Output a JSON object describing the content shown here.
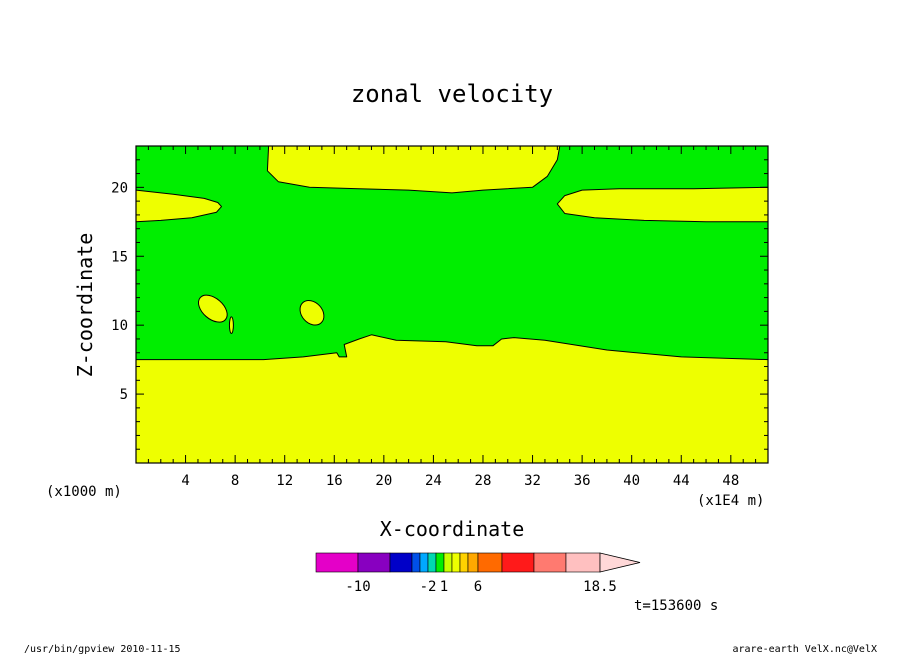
{
  "chart_data": {
    "type": "contour",
    "title": "zonal velocity",
    "xlabel": "X-coordinate",
    "ylabel": "Z-coordinate",
    "x_unit_label": "(x1000 m)",
    "x_unit_label_right": "(x1E4 m)",
    "xlim": [
      0,
      51
    ],
    "ylim": [
      0,
      23
    ],
    "x_ticks": [
      4,
      8,
      12,
      16,
      20,
      24,
      28,
      32,
      36,
      40,
      44,
      48
    ],
    "y_ticks": [
      5,
      10,
      15,
      20
    ],
    "background_color": "#00ee00",
    "fill_color_positive": "#eeff00",
    "regions": [
      {
        "name": "lower-band",
        "boundary": [
          [
            0,
            0
          ],
          [
            0,
            7.5
          ],
          [
            10.3,
            7.5
          ],
          [
            13.5,
            7.7
          ],
          [
            15.3,
            7.9
          ],
          [
            16.2,
            8.0
          ],
          [
            16.4,
            7.7
          ],
          [
            17,
            7.7
          ],
          [
            16.8,
            8.6
          ],
          [
            18,
            9.0
          ],
          [
            19,
            9.3
          ],
          [
            21,
            8.9
          ],
          [
            25,
            8.8
          ],
          [
            27.5,
            8.5
          ],
          [
            28.8,
            8.5
          ],
          [
            29.5,
            9.0
          ],
          [
            30.5,
            9.1
          ],
          [
            33,
            8.9
          ],
          [
            38,
            8.2
          ],
          [
            44,
            7.7
          ],
          [
            51,
            7.5
          ],
          [
            51,
            0
          ]
        ]
      },
      {
        "name": "upper-center-cap",
        "boundary": [
          [
            10.7,
            23
          ],
          [
            10.6,
            21.2
          ],
          [
            11.5,
            20.4
          ],
          [
            14,
            20.0
          ],
          [
            18,
            19.9
          ],
          [
            22,
            19.8
          ],
          [
            25.5,
            19.6
          ],
          [
            28,
            19.8
          ],
          [
            32,
            20.0
          ],
          [
            33.2,
            20.8
          ],
          [
            34,
            22
          ],
          [
            34.2,
            23
          ]
        ]
      },
      {
        "name": "left-lobe",
        "boundary": [
          [
            0,
            19.8
          ],
          [
            3,
            19.5
          ],
          [
            5.5,
            19.2
          ],
          [
            6.6,
            18.9
          ],
          [
            6.9,
            18.6
          ],
          [
            6.5,
            18.2
          ],
          [
            4.5,
            17.8
          ],
          [
            2,
            17.6
          ],
          [
            0,
            17.5
          ]
        ]
      },
      {
        "name": "right-lobe",
        "boundary": [
          [
            51,
            20.0
          ],
          [
            45,
            19.9
          ],
          [
            39,
            19.9
          ],
          [
            36,
            19.8
          ],
          [
            34.6,
            19.4
          ],
          [
            34,
            18.8
          ],
          [
            34.6,
            18.1
          ],
          [
            37,
            17.8
          ],
          [
            41,
            17.6
          ],
          [
            46,
            17.5
          ],
          [
            51,
            17.5
          ]
        ]
      },
      {
        "name": "small-ellipse-1",
        "ellipse": {
          "cx": 6.2,
          "cy": 11.2,
          "rx": 1.35,
          "ry": 0.25,
          "angle_deg": 41
        }
      },
      {
        "name": "small-ellipse-2",
        "ellipse": {
          "cx": 7.7,
          "cy": 10.0,
          "rx": 0.16,
          "ry": 0.2,
          "angle_deg": 0
        }
      },
      {
        "name": "small-ellipse-3",
        "ellipse": {
          "cx": 14.2,
          "cy": 10.9,
          "rx": 1.1,
          "ry": 0.25,
          "angle_deg": 48
        }
      }
    ],
    "colorbar": {
      "colors": [
        "#e400c8",
        "#8800c0",
        "#0000c8",
        "#0050e8",
        "#00a8ff",
        "#00d8b0",
        "#00ee00",
        "#c8ff00",
        "#eeff00",
        "#ffd200",
        "#ffa800",
        "#ff6a00",
        "#ff1a1a",
        "#ff7a70",
        "#ffc0c0"
      ],
      "widths": [
        42,
        32,
        22,
        8,
        8,
        8,
        8,
        8,
        8,
        8,
        10,
        24,
        32,
        32,
        34
      ],
      "labels": [
        {
          "text": "-10",
          "after_box": 1
        },
        {
          "text": "-2",
          "after_box": 5
        },
        {
          "text": "1",
          "after_box": 7
        },
        {
          "text": "6",
          "after_box": 11
        },
        {
          "text": "18.5",
          "after_box": 15
        }
      ]
    },
    "time_label": "t=153600 s"
  },
  "footer": {
    "left": "/usr/bin/gpview   2010-11-15",
    "right": "arare-earth_VelX.nc@VelX"
  }
}
